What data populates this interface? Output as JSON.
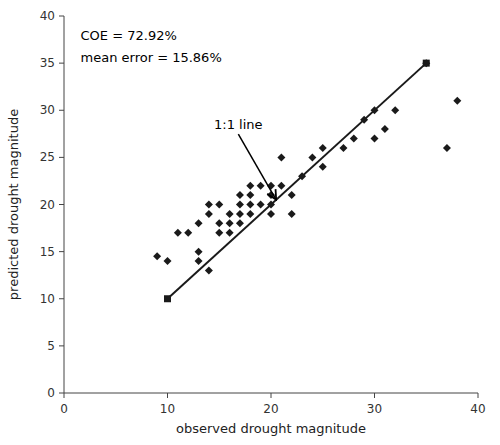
{
  "chart_data": {
    "type": "scatter",
    "x_label": "observed drought magnitude",
    "y_label": "predicted drought magnitude",
    "series": [
      {
        "type": "scatter",
        "marker": "diamond",
        "color": "#1a1a1a",
        "x": [
          9,
          10,
          11,
          12,
          13,
          13,
          13,
          14,
          14,
          14,
          15,
          15,
          15,
          16,
          16,
          16,
          17,
          17,
          17,
          17,
          18,
          18,
          18,
          18,
          19,
          19,
          20,
          20,
          20,
          20,
          21,
          21,
          22,
          22,
          23,
          24,
          25,
          25,
          27,
          28,
          29,
          30,
          30,
          31,
          32,
          35,
          37,
          38
        ],
        "values": [
          14.5,
          14,
          17,
          17,
          14,
          15,
          18,
          13,
          19,
          20,
          17,
          18,
          20,
          17,
          18,
          19,
          18,
          19,
          20,
          21,
          19,
          20,
          21,
          22,
          20,
          22,
          19,
          20,
          21,
          22,
          22,
          25,
          19,
          21,
          23,
          25,
          24,
          26,
          26,
          27,
          29,
          27,
          30,
          28,
          30,
          35,
          26,
          31
        ]
      },
      {
        "type": "line",
        "marker": "square",
        "color": "#1a1a1a",
        "x": [
          10,
          35
        ],
        "values": [
          10,
          35
        ]
      }
    ],
    "annotations": [
      {
        "text": "1:1 line",
        "xy": [
          20.5,
          20.5
        ],
        "xytext": [
          14.5,
          28
        ]
      },
      {
        "text": "COE = 72.92%"
      },
      {
        "text": "mean error = 15.86%"
      }
    ],
    "xlim": [
      0,
      40
    ],
    "ylim": [
      0,
      40
    ],
    "xticks": [
      0,
      10,
      20,
      30,
      40
    ],
    "yticks": [
      0,
      5,
      10,
      15,
      20,
      25,
      30,
      35,
      40
    ],
    "grid": false
  }
}
